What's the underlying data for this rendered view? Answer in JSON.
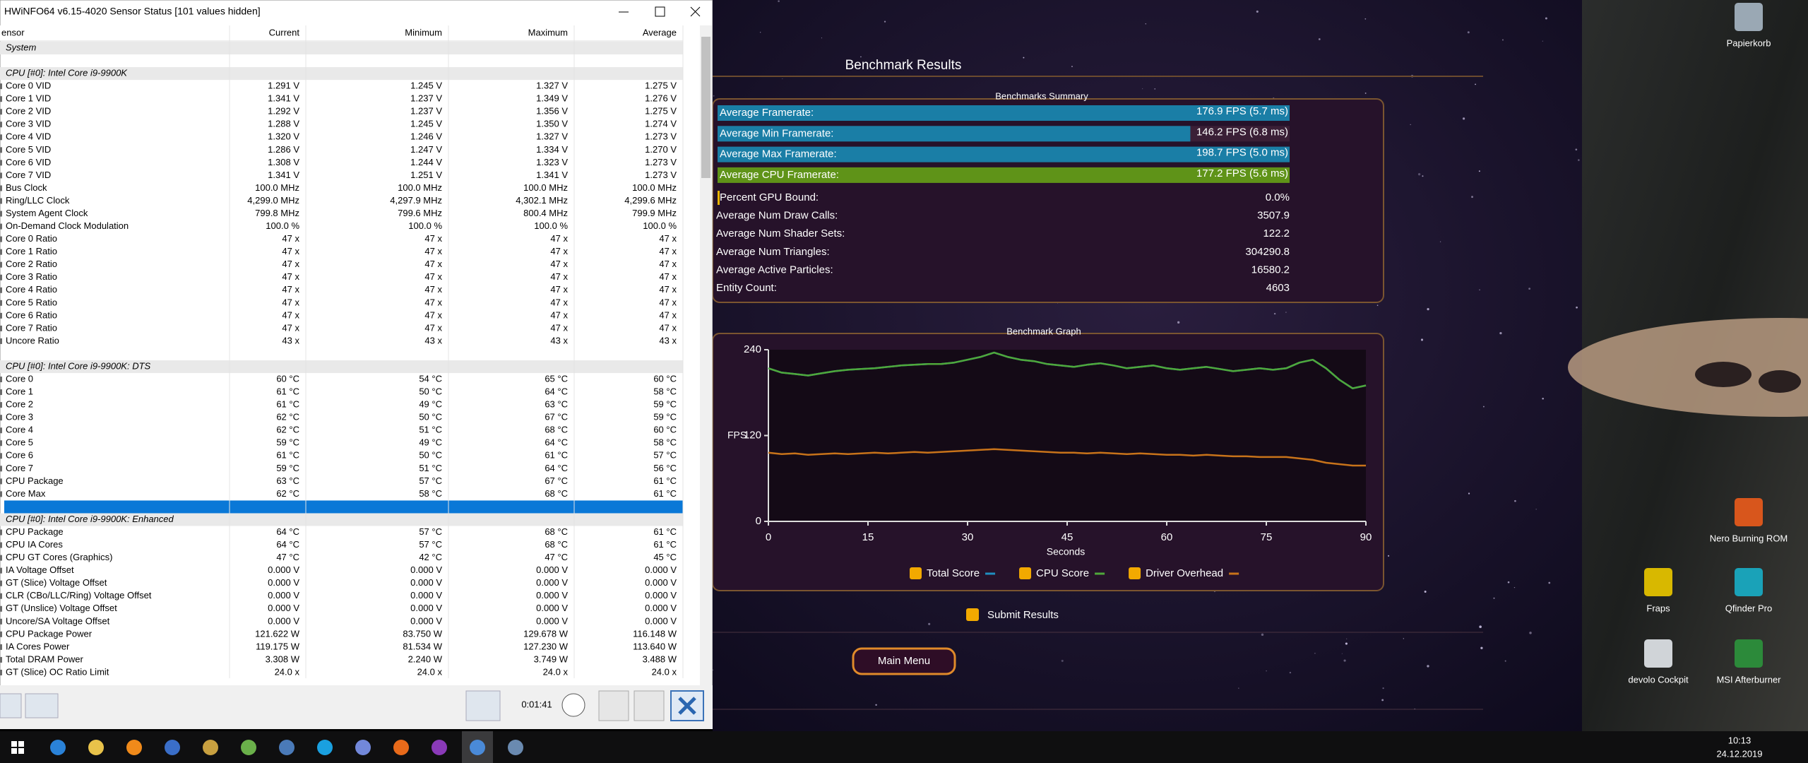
{
  "hwinfo": {
    "title": "HWiNFO64 v6.15-4020 Sensor Status [101 values hidden]",
    "columns": [
      "ensor",
      "Current",
      "Minimum",
      "Maximum",
      "Average"
    ],
    "rows": [
      {
        "section": "System"
      },
      {
        "blank": true
      },
      {
        "section": "CPU [#0]: Intel Core i9-9900K"
      },
      {
        "cells": [
          "Core 0 VID",
          "1.291 V",
          "1.245 V",
          "1.327 V",
          "1.275 V"
        ]
      },
      {
        "cells": [
          "Core 1 VID",
          "1.341 V",
          "1.237 V",
          "1.349 V",
          "1.276 V"
        ]
      },
      {
        "cells": [
          "Core 2 VID",
          "1.292 V",
          "1.237 V",
          "1.356 V",
          "1.275 V"
        ]
      },
      {
        "cells": [
          "Core 3 VID",
          "1.288 V",
          "1.245 V",
          "1.350 V",
          "1.274 V"
        ]
      },
      {
        "cells": [
          "Core 4 VID",
          "1.320 V",
          "1.246 V",
          "1.327 V",
          "1.273 V"
        ]
      },
      {
        "cells": [
          "Core 5 VID",
          "1.286 V",
          "1.247 V",
          "1.334 V",
          "1.270 V"
        ]
      },
      {
        "cells": [
          "Core 6 VID",
          "1.308 V",
          "1.244 V",
          "1.323 V",
          "1.273 V"
        ]
      },
      {
        "cells": [
          "Core 7 VID",
          "1.341 V",
          "1.251 V",
          "1.341 V",
          "1.273 V"
        ]
      },
      {
        "cells": [
          "Bus Clock",
          "100.0 MHz",
          "100.0 MHz",
          "100.0 MHz",
          "100.0 MHz"
        ]
      },
      {
        "cells": [
          "Ring/LLC Clock",
          "4,299.0 MHz",
          "4,297.9 MHz",
          "4,302.1 MHz",
          "4,299.6 MHz"
        ]
      },
      {
        "cells": [
          "System Agent Clock",
          "799.8 MHz",
          "799.6 MHz",
          "800.4 MHz",
          "799.9 MHz"
        ]
      },
      {
        "cells": [
          "On-Demand Clock Modulation",
          "100.0 %",
          "100.0 %",
          "100.0 %",
          "100.0 %"
        ]
      },
      {
        "cells": [
          "Core 0 Ratio",
          "47 x",
          "47 x",
          "47 x",
          "47 x"
        ]
      },
      {
        "cells": [
          "Core 1 Ratio",
          "47 x",
          "47 x",
          "47 x",
          "47 x"
        ]
      },
      {
        "cells": [
          "Core 2 Ratio",
          "47 x",
          "47 x",
          "47 x",
          "47 x"
        ]
      },
      {
        "cells": [
          "Core 3 Ratio",
          "47 x",
          "47 x",
          "47 x",
          "47 x"
        ]
      },
      {
        "cells": [
          "Core 4 Ratio",
          "47 x",
          "47 x",
          "47 x",
          "47 x"
        ]
      },
      {
        "cells": [
          "Core 5 Ratio",
          "47 x",
          "47 x",
          "47 x",
          "47 x"
        ]
      },
      {
        "cells": [
          "Core 6 Ratio",
          "47 x",
          "47 x",
          "47 x",
          "47 x"
        ]
      },
      {
        "cells": [
          "Core 7 Ratio",
          "47 x",
          "47 x",
          "47 x",
          "47 x"
        ]
      },
      {
        "cells": [
          "Uncore Ratio",
          "43 x",
          "43 x",
          "43 x",
          "43 x"
        ]
      },
      {
        "blank": true
      },
      {
        "section": "CPU [#0]: Intel Core i9-9900K: DTS"
      },
      {
        "cells": [
          "Core 0",
          "60 °C",
          "54 °C",
          "65 °C",
          "60 °C"
        ]
      },
      {
        "cells": [
          "Core 1",
          "61 °C",
          "50 °C",
          "64 °C",
          "58 °C"
        ]
      },
      {
        "cells": [
          "Core 2",
          "61 °C",
          "49 °C",
          "63 °C",
          "59 °C"
        ]
      },
      {
        "cells": [
          "Core 3",
          "62 °C",
          "50 °C",
          "67 °C",
          "59 °C"
        ]
      },
      {
        "cells": [
          "Core 4",
          "62 °C",
          "51 °C",
          "68 °C",
          "60 °C"
        ]
      },
      {
        "cells": [
          "Core 5",
          "59 °C",
          "49 °C",
          "64 °C",
          "58 °C"
        ]
      },
      {
        "cells": [
          "Core 6",
          "61 °C",
          "50 °C",
          "61 °C",
          "57 °C"
        ]
      },
      {
        "cells": [
          "Core 7",
          "59 °C",
          "51 °C",
          "64 °C",
          "56 °C"
        ]
      },
      {
        "cells": [
          "CPU Package",
          "63 °C",
          "57 °C",
          "67 °C",
          "61 °C"
        ]
      },
      {
        "cells": [
          "Core Max",
          "62 °C",
          "58 °C",
          "68 °C",
          "61 °C"
        ]
      },
      {
        "blank": true,
        "selected": true
      },
      {
        "section": "CPU [#0]: Intel Core i9-9900K: Enhanced"
      },
      {
        "cells": [
          "CPU Package",
          "64 °C",
          "57 °C",
          "68 °C",
          "61 °C"
        ]
      },
      {
        "cells": [
          "CPU IA Cores",
          "64 °C",
          "57 °C",
          "68 °C",
          "61 °C"
        ]
      },
      {
        "cells": [
          "CPU GT Cores (Graphics)",
          "47 °C",
          "42 °C",
          "47 °C",
          "45 °C"
        ]
      },
      {
        "cells": [
          "IA Voltage Offset",
          "0.000 V",
          "0.000 V",
          "0.000 V",
          "0.000 V"
        ]
      },
      {
        "cells": [
          "GT (Slice) Voltage Offset",
          "0.000 V",
          "0.000 V",
          "0.000 V",
          "0.000 V"
        ]
      },
      {
        "cells": [
          "CLR (CBo/LLC/Ring) Voltage Offset",
          "0.000 V",
          "0.000 V",
          "0.000 V",
          "0.000 V"
        ]
      },
      {
        "cells": [
          "GT (Unslice) Voltage Offset",
          "0.000 V",
          "0.000 V",
          "0.000 V",
          "0.000 V"
        ]
      },
      {
        "cells": [
          "Uncore/SA Voltage Offset",
          "0.000 V",
          "0.000 V",
          "0.000 V",
          "0.000 V"
        ]
      },
      {
        "cells": [
          "CPU Package Power",
          "121.622 W",
          "83.750 W",
          "129.678 W",
          "116.148 W"
        ]
      },
      {
        "cells": [
          "IA Cores Power",
          "119.175 W",
          "81.534 W",
          "127.230 W",
          "113.640 W"
        ]
      },
      {
        "cells": [
          "Total DRAM Power",
          "3.308 W",
          "2.240 W",
          "3.749 W",
          "3.488 W"
        ]
      },
      {
        "cells": [
          "GT (Slice) OC Ratio Limit",
          "24.0 x",
          "24.0 x",
          "24.0 x",
          "24.0 x"
        ]
      }
    ],
    "elapsed": "0:01:41"
  },
  "benchmark": {
    "title": "Benchmark Results",
    "summary": {
      "title": "Benchmarks Summary",
      "bars": [
        {
          "label": "Average Framerate:",
          "value": 176.9,
          "value_label": "176.9 FPS (5.7 ms)",
          "color": "#1a7ea6"
        },
        {
          "label": "Average Min Framerate:",
          "value": 146.2,
          "value_label": "146.2 FPS (6.8 ms)",
          "color": "#1a7ea6"
        },
        {
          "label": "Average Max Framerate:",
          "value": 198.7,
          "value_label": "198.7 FPS (5.0 ms)",
          "color": "#1a7ea6"
        },
        {
          "label": "Average CPU Framerate:",
          "value": 177.2,
          "value_label": "177.2 FPS (5.6 ms)",
          "color": "#5f9318"
        }
      ],
      "stats": [
        {
          "label": "Percent GPU Bound:",
          "value": "0.0%"
        },
        {
          "label": "Average Num Draw Calls:",
          "value": "3507.9"
        },
        {
          "label": "Average Num Shader Sets:",
          "value": "122.2"
        },
        {
          "label": "Average Num Triangles:",
          "value": "304290.8"
        },
        {
          "label": "Average Active Particles:",
          "value": "16580.2"
        },
        {
          "label": "Entity Count:",
          "value": "4603"
        }
      ]
    },
    "submit": "Submit Results",
    "main_menu": "Main Menu"
  },
  "chart_data": {
    "type": "line",
    "title": "Benchmark Graph",
    "xlabel": "Seconds",
    "ylabel": "FPS",
    "x": [
      0,
      2,
      4,
      6,
      8,
      10,
      12,
      14,
      16,
      18,
      20,
      22,
      24,
      26,
      28,
      30,
      32,
      34,
      36,
      38,
      40,
      42,
      44,
      46,
      48,
      50,
      52,
      54,
      56,
      58,
      60,
      62,
      64,
      66,
      68,
      70,
      72,
      74,
      76,
      78,
      80,
      82,
      84,
      86,
      88,
      90
    ],
    "series": [
      {
        "name": "Total Score",
        "color": "#1f8fc0",
        "values": [
          214,
          208,
          206,
          204,
          207,
          210,
          212,
          213,
          214,
          216,
          218,
          219,
          220,
          220,
          222,
          226,
          230,
          236,
          230,
          226,
          224,
          220,
          218,
          216,
          219,
          221,
          218,
          214,
          216,
          218,
          214,
          212,
          214,
          216,
          213,
          210,
          212,
          214,
          212,
          214,
          222,
          226,
          214,
          198,
          186,
          190
        ]
      },
      {
        "name": "CPU Score",
        "color": "#4fa83a",
        "values": [
          214,
          208,
          206,
          204,
          207,
          210,
          212,
          213,
          214,
          216,
          218,
          219,
          220,
          220,
          222,
          226,
          230,
          236,
          230,
          226,
          224,
          220,
          218,
          216,
          219,
          221,
          218,
          214,
          216,
          218,
          214,
          212,
          214,
          216,
          213,
          210,
          212,
          214,
          212,
          214,
          222,
          226,
          214,
          198,
          186,
          190
        ]
      },
      {
        "name": "Driver Overhead",
        "color": "#c8731a",
        "values": [
          96,
          94,
          95,
          93,
          94,
          95,
          94,
          95,
          96,
          95,
          96,
          97,
          96,
          97,
          98,
          99,
          100,
          101,
          100,
          99,
          98,
          97,
          96,
          96,
          95,
          96,
          95,
          94,
          95,
          94,
          93,
          93,
          92,
          93,
          92,
          91,
          91,
          90,
          90,
          90,
          88,
          86,
          82,
          80,
          78,
          78
        ]
      }
    ],
    "xlim": [
      0,
      90
    ],
    "xticks": [
      0,
      15,
      30,
      45,
      60,
      75,
      90
    ],
    "ylim": [
      0,
      240
    ],
    "yticks": [
      0,
      120,
      240
    ],
    "grid": false
  },
  "desktop": {
    "icons": [
      "Papierkorb",
      "Nero Burning ROM",
      "Fraps",
      "Qfinder Pro",
      "devolo Cockpit",
      "MSI Afterburner"
    ],
    "time": "10:13",
    "date": "24.12.2019"
  }
}
